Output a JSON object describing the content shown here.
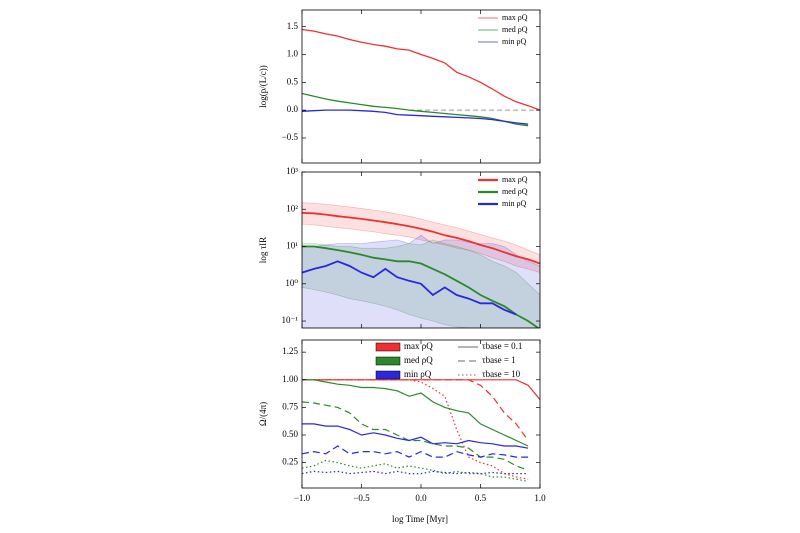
{
  "x_axis": {
    "xlabel": "log Time [Myr]",
    "x": [
      -1.0,
      -0.9,
      -0.8,
      -0.7,
      -0.6,
      -0.5,
      -0.4,
      -0.3,
      -0.2,
      -0.1,
      0.0,
      0.1,
      0.2,
      0.3,
      0.4,
      0.5,
      0.6,
      0.7,
      0.8,
      0.9,
      1.0
    ],
    "xlim": [
      -1.0,
      1.0
    ],
    "xticks": [
      {
        "value": -1.0,
        "label": "−1.0"
      },
      {
        "value": -0.5,
        "label": "−0.5"
      },
      {
        "value": 0,
        "label": "0.0"
      },
      0.5,
      {
        "value": 1.0,
        "label": "1.0"
      }
    ]
  },
  "chart_data": [
    {
      "type": "line",
      "ylabel": "log(p/(L/c))",
      "ylim": [
        -0.95,
        1.8
      ],
      "yticks": [
        {
          "value": -0.5,
          "label": "−0.5"
        },
        {
          "value": 0,
          "label": "0.0"
        },
        0.5,
        {
          "value": 1.0,
          "label": "1.0"
        },
        1.5
      ],
      "hline": 0,
      "legend": "upper right",
      "series": [
        {
          "name": "max ρQ",
          "color": "#f03030",
          "values": [
            1.45,
            1.42,
            1.37,
            1.33,
            1.27,
            1.22,
            1.18,
            1.15,
            1.1,
            1.08,
            1.0,
            0.93,
            0.85,
            0.68,
            0.6,
            0.5,
            0.38,
            0.25,
            0.15,
            0.08,
            0.0
          ]
        },
        {
          "name": "med ρQ",
          "color": "#2a8a2a",
          "values": [
            0.3,
            0.25,
            0.2,
            0.16,
            0.13,
            0.1,
            0.07,
            0.05,
            0.03,
            0.0,
            -0.02,
            -0.04,
            -0.06,
            -0.08,
            -0.1,
            -0.12,
            -0.15,
            -0.2,
            -0.25,
            -0.28,
            null
          ]
        },
        {
          "name": "min ρQ",
          "color": "#2828e0",
          "values": [
            -0.02,
            -0.01,
            0.0,
            0.0,
            0.0,
            -0.01,
            -0.02,
            -0.04,
            -0.08,
            -0.09,
            -0.1,
            -0.11,
            -0.12,
            -0.13,
            -0.14,
            -0.15,
            -0.17,
            -0.2,
            -0.23,
            -0.25,
            null
          ]
        }
      ]
    },
    {
      "type": "band",
      "ylabel": "log τIR",
      "ylog": true,
      "ylim": [
        0.065,
        1000
      ],
      "yticks": [
        {
          "value": 0.1,
          "label": "10⁻¹"
        },
        {
          "value": 1,
          "label": "10⁰"
        },
        {
          "value": 10,
          "label": "10¹"
        },
        {
          "value": 100,
          "label": "10²"
        },
        {
          "value": 1000,
          "label": "10³"
        }
      ],
      "legend": "upper right",
      "series": [
        {
          "name": "max ρQ",
          "color": "#f03030",
          "values": [
            80,
            78,
            72,
            65,
            60,
            55,
            50,
            45,
            40,
            35,
            30,
            25,
            20,
            17,
            14,
            11,
            9,
            7,
            5.5,
            4.5,
            3.5
          ],
          "upper": [
            150,
            145,
            135,
            125,
            115,
            105,
            95,
            85,
            75,
            65,
            55,
            45,
            38,
            32,
            26,
            21,
            17,
            14,
            11,
            8,
            6
          ],
          "lower": [
            40,
            38,
            35,
            32,
            30,
            27,
            25,
            22,
            20,
            18,
            15,
            13,
            11,
            9,
            8,
            6.5,
            5,
            4,
            3,
            2.5,
            2
          ]
        },
        {
          "name": "med ρQ",
          "color": "#2a8a2a",
          "values": [
            10,
            10,
            9,
            8,
            7,
            6,
            5,
            4.5,
            4,
            4,
            3.5,
            2.5,
            1.8,
            1.2,
            0.8,
            0.5,
            0.35,
            0.25,
            0.15,
            0.1,
            0.06
          ],
          "upper": [
            12,
            12,
            11,
            10,
            10,
            9,
            9,
            9,
            10,
            12,
            11,
            15,
            12,
            10,
            8,
            6,
            4,
            3,
            2,
            1,
            0.5
          ],
          "lower": [
            0.8,
            0.7,
            0.6,
            0.5,
            0.4,
            0.35,
            0.3,
            0.25,
            0.2,
            0.15,
            0.12,
            0.1,
            0.08,
            0.07,
            0.065,
            0.065,
            0.065,
            0.065,
            0.065,
            0.065,
            0.065
          ]
        },
        {
          "name": "min ρQ",
          "color": "#2828e0",
          "values": [
            2,
            2.5,
            3,
            4,
            3,
            2,
            1.5,
            2.5,
            1.5,
            1.2,
            1.0,
            0.5,
            0.8,
            0.5,
            0.4,
            0.3,
            0.3,
            0.2,
            0.15,
            null,
            null
          ],
          "upper": [
            10,
            10,
            11,
            12,
            12,
            12,
            13,
            14,
            15,
            12,
            20,
            12,
            15,
            15,
            13,
            12,
            12,
            10,
            6,
            4,
            3
          ],
          "lower": [
            0.065,
            0.065,
            0.065,
            0.065,
            0.065,
            0.065,
            0.065,
            0.065,
            0.065,
            0.065,
            0.065,
            0.065,
            0.065,
            0.065,
            0.065,
            0.065,
            0.065,
            0.065,
            0.065,
            0.065,
            0.065
          ]
        }
      ]
    },
    {
      "type": "multiline",
      "ylabel": "Ω/(4π)",
      "ylim": [
        0.02,
        1.36
      ],
      "yticks": [
        0.25,
        {
          "value": 0.5,
          "label": "0.50"
        },
        0.75,
        {
          "value": 1.0,
          "label": "1.00"
        },
        1.25
      ],
      "legend": "upper right",
      "styles": [
        {
          "label": "τbase = 0.1",
          "dash": "solid"
        },
        {
          "label": "τbase = 1",
          "dash": "dashed"
        },
        {
          "label": "τbase = 10",
          "dash": "dotted"
        }
      ],
      "series": [
        {
          "name": "max ρQ",
          "color": "#f03030",
          "lines": [
            [
              1.0,
              1.0,
              1.0,
              1.0,
              1.0,
              1.0,
              1.0,
              1.0,
              1.0,
              1.0,
              1.0,
              1.0,
              1.0,
              1.0,
              1.0,
              1.0,
              1.0,
              1.0,
              1.0,
              0.95,
              0.82
            ],
            [
              1.0,
              1.0,
              1.0,
              1.0,
              1.0,
              1.0,
              1.0,
              1.0,
              1.0,
              1.0,
              1.0,
              1.0,
              1.0,
              1.0,
              1.0,
              0.95,
              0.85,
              0.7,
              0.6,
              0.45,
              null
            ],
            [
              1.0,
              1.0,
              1.0,
              1.0,
              1.0,
              1.0,
              1.0,
              1.0,
              1.0,
              1.0,
              0.98,
              0.92,
              0.85,
              0.55,
              0.3,
              0.25,
              0.22,
              0.15,
              0.12,
              0.1,
              null
            ]
          ]
        },
        {
          "name": "med ρQ",
          "color": "#2a8a2a",
          "lines": [
            [
              1.0,
              1.0,
              0.98,
              0.96,
              0.95,
              0.93,
              0.93,
              0.92,
              0.9,
              0.85,
              0.88,
              0.8,
              0.75,
              0.72,
              0.7,
              0.6,
              0.55,
              0.5,
              0.45,
              0.4,
              null
            ],
            [
              0.8,
              0.79,
              0.77,
              0.75,
              0.7,
              0.6,
              0.55,
              0.55,
              0.5,
              0.45,
              0.45,
              0.42,
              0.4,
              0.4,
              0.38,
              0.3,
              0.3,
              0.28,
              0.22,
              0.18,
              null
            ],
            [
              0.2,
              0.22,
              0.27,
              0.25,
              0.22,
              0.2,
              0.22,
              0.24,
              0.2,
              0.22,
              0.2,
              0.18,
              0.15,
              0.17,
              0.15,
              0.15,
              0.12,
              0.12,
              0.1,
              0.08,
              null
            ]
          ]
        },
        {
          "name": "min ρQ",
          "color": "#2828e0",
          "lines": [
            [
              0.6,
              0.6,
              0.58,
              0.58,
              0.55,
              0.5,
              0.52,
              0.5,
              0.47,
              0.45,
              0.48,
              0.42,
              0.43,
              0.42,
              0.45,
              0.43,
              0.42,
              0.4,
              0.4,
              0.38,
              null
            ],
            [
              0.33,
              0.35,
              0.33,
              0.4,
              0.33,
              0.35,
              0.35,
              0.33,
              0.35,
              0.3,
              0.35,
              0.3,
              0.3,
              0.35,
              0.32,
              0.3,
              0.33,
              0.32,
              0.3,
              0.3,
              null
            ],
            [
              0.15,
              0.17,
              0.16,
              0.17,
              0.15,
              0.16,
              0.17,
              0.15,
              0.17,
              0.15,
              0.15,
              0.17,
              0.16,
              0.15,
              0.16,
              0.15,
              0.16,
              0.15,
              0.15,
              0.15,
              null
            ]
          ]
        }
      ]
    }
  ]
}
